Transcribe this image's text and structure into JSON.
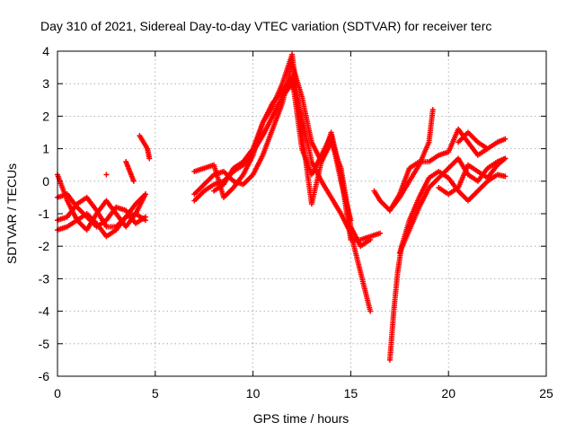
{
  "chart_data": {
    "type": "scatter",
    "title": "Day 310 of 2021, Sidereal Day-to-day VTEC variation (SDTVAR) for receiver terc",
    "xlabel": "GPS time / hours",
    "ylabel": "SDTVAR / TECUs",
    "xlim": [
      0,
      25
    ],
    "ylim": [
      -6,
      4
    ],
    "xticks": [
      "0",
      "5",
      "10",
      "15",
      "20",
      "25"
    ],
    "yticks": [
      "-6",
      "-5",
      "-4",
      "-3",
      "-2",
      "-1",
      "0",
      "1",
      "2",
      "3",
      "4"
    ],
    "grid": true,
    "marker": "+",
    "color": "#ff0000",
    "series": [
      {
        "x": [
          0.0,
          0.5,
          1.0,
          1.5,
          2.0,
          2.5,
          3.0,
          3.5,
          4.0,
          4.5
        ],
        "y": [
          0.2,
          -0.6,
          -1.2,
          -1.5,
          -1.0,
          -0.6,
          -1.0,
          -1.4,
          -1.0,
          -0.4
        ]
      },
      {
        "x": [
          0.0,
          0.5,
          1.0,
          1.5,
          2.0,
          2.5,
          3.0,
          3.5,
          4.0,
          4.5
        ],
        "y": [
          -0.5,
          -0.4,
          -0.8,
          -1.1,
          -1.4,
          -1.2,
          -0.8,
          -0.9,
          -1.3,
          -1.1
        ]
      },
      {
        "x": [
          0.0,
          0.5,
          1.0,
          1.5,
          2.0,
          2.5,
          3.0,
          3.5,
          4.0,
          4.5
        ],
        "y": [
          -1.2,
          -1.1,
          -0.7,
          -0.5,
          -0.9,
          -1.4,
          -1.4,
          -1.1,
          -0.7,
          -0.4
        ]
      },
      {
        "x": [
          0.0,
          0.5,
          1.0,
          1.5,
          2.0,
          2.5,
          3.0,
          3.5,
          4.0,
          4.5
        ],
        "y": [
          -1.5,
          -1.4,
          -1.2,
          -1.0,
          -1.3,
          -1.7,
          -1.5,
          -1.1,
          -1.0,
          -1.2
        ]
      },
      {
        "x": [
          2.5
        ],
        "y": [
          0.2
        ]
      },
      {
        "x": [
          4.2,
          4.4,
          4.6,
          4.7
        ],
        "y": [
          1.4,
          1.2,
          1.0,
          0.7
        ]
      },
      {
        "x": [
          3.5,
          3.7,
          3.9
        ],
        "y": [
          0.6,
          0.3,
          0.0
        ]
      },
      {
        "x": [
          7.0,
          7.5,
          8.0,
          8.5,
          9.0,
          9.5,
          10.0,
          10.5,
          11.0,
          11.5,
          12.0,
          12.5,
          13.0,
          13.5,
          14.0,
          14.5,
          15.0,
          15.5,
          16.0
        ],
        "y": [
          -0.6,
          -0.3,
          -0.1,
          0.0,
          0.3,
          0.5,
          0.9,
          1.4,
          2.0,
          2.6,
          3.0,
          2.0,
          0.6,
          0.0,
          -0.5,
          -1.0,
          -1.6,
          -2.8,
          -4.0
        ]
      },
      {
        "x": [
          7.0,
          7.5,
          8.0,
          8.5,
          9.0,
          9.5,
          10.0,
          10.5,
          11.0,
          11.5,
          12.0,
          12.5,
          13.0,
          13.5,
          14.0,
          14.5,
          15.0,
          15.5,
          16.0
        ],
        "y": [
          -0.4,
          -0.1,
          0.2,
          0.3,
          0.0,
          -0.1,
          0.2,
          0.8,
          1.6,
          2.4,
          3.6,
          2.6,
          1.2,
          0.6,
          1.2,
          0.4,
          -1.4,
          -2.0,
          -1.8
        ]
      },
      {
        "x": [
          7.0,
          7.5,
          8.0,
          8.5,
          9.0,
          9.5,
          10.0,
          10.5,
          11.0,
          11.5,
          12.0,
          12.5,
          13.0,
          13.5,
          14.0,
          14.5,
          15.0,
          15.5,
          16.0,
          16.5
        ],
        "y": [
          0.3,
          0.4,
          0.5,
          -0.5,
          -0.2,
          0.2,
          0.8,
          1.8,
          2.3,
          3.0,
          3.9,
          1.5,
          -0.7,
          0.6,
          1.5,
          0.2,
          -1.8,
          -1.8,
          -1.7,
          -1.6
        ]
      },
      {
        "x": [
          8.0,
          8.5,
          9.0,
          9.5,
          10.0,
          10.5,
          11.0,
          11.5,
          12.0,
          12.5,
          13.0,
          13.5,
          14.0,
          14.5,
          15.0
        ],
        "y": [
          -0.3,
          -0.1,
          0.4,
          0.6,
          1.0,
          1.8,
          2.4,
          2.8,
          3.2,
          1.0,
          0.2,
          0.8,
          1.4,
          0.0,
          -1.2
        ]
      },
      {
        "x": [
          16.2,
          16.5,
          17.0,
          17.5,
          18.0,
          18.5,
          19.0,
          19.2
        ],
        "y": [
          -0.3,
          -0.6,
          -0.9,
          -0.5,
          0.0,
          0.5,
          1.2,
          2.2
        ]
      },
      {
        "x": [
          17.0,
          17.2,
          17.4,
          17.6,
          18.0,
          18.5,
          19.0,
          19.5,
          20.0,
          20.5,
          21.0,
          21.5,
          22.0,
          22.5,
          22.9
        ],
        "y": [
          -5.5,
          -4.0,
          -2.8,
          -2.0,
          -1.2,
          -0.5,
          0.1,
          0.3,
          0.1,
          -0.3,
          -0.6,
          -0.3,
          0.0,
          0.2,
          0.15
        ]
      },
      {
        "x": [
          17.5,
          18.0,
          18.5,
          19.0,
          19.5,
          20.0,
          20.5,
          21.0,
          21.5,
          22.0,
          22.5,
          22.9
        ],
        "y": [
          -2.2,
          -1.5,
          -0.8,
          -0.2,
          0.1,
          0.4,
          0.7,
          0.2,
          0.0,
          0.4,
          0.6,
          0.7
        ]
      },
      {
        "x": [
          17.0,
          17.5,
          18.0,
          18.5,
          19.0,
          19.5,
          20.0,
          20.5,
          21.0,
          21.5,
          22.0,
          22.5,
          22.9
        ],
        "y": [
          -0.9,
          -0.4,
          0.4,
          0.6,
          0.6,
          0.8,
          0.9,
          1.6,
          1.2,
          0.8,
          1.0,
          1.2,
          1.3
        ]
      },
      {
        "x": [
          19.5,
          20.0,
          20.5,
          21.0,
          21.5,
          22.0,
          22.5,
          22.9
        ],
        "y": [
          -0.2,
          -0.4,
          -0.2,
          0.5,
          0.3,
          0.1,
          0.5,
          0.7
        ]
      },
      {
        "x": [
          20.5,
          21.0,
          21.5,
          22.0
        ],
        "y": [
          1.2,
          1.5,
          1.2,
          1.0
        ]
      }
    ]
  }
}
